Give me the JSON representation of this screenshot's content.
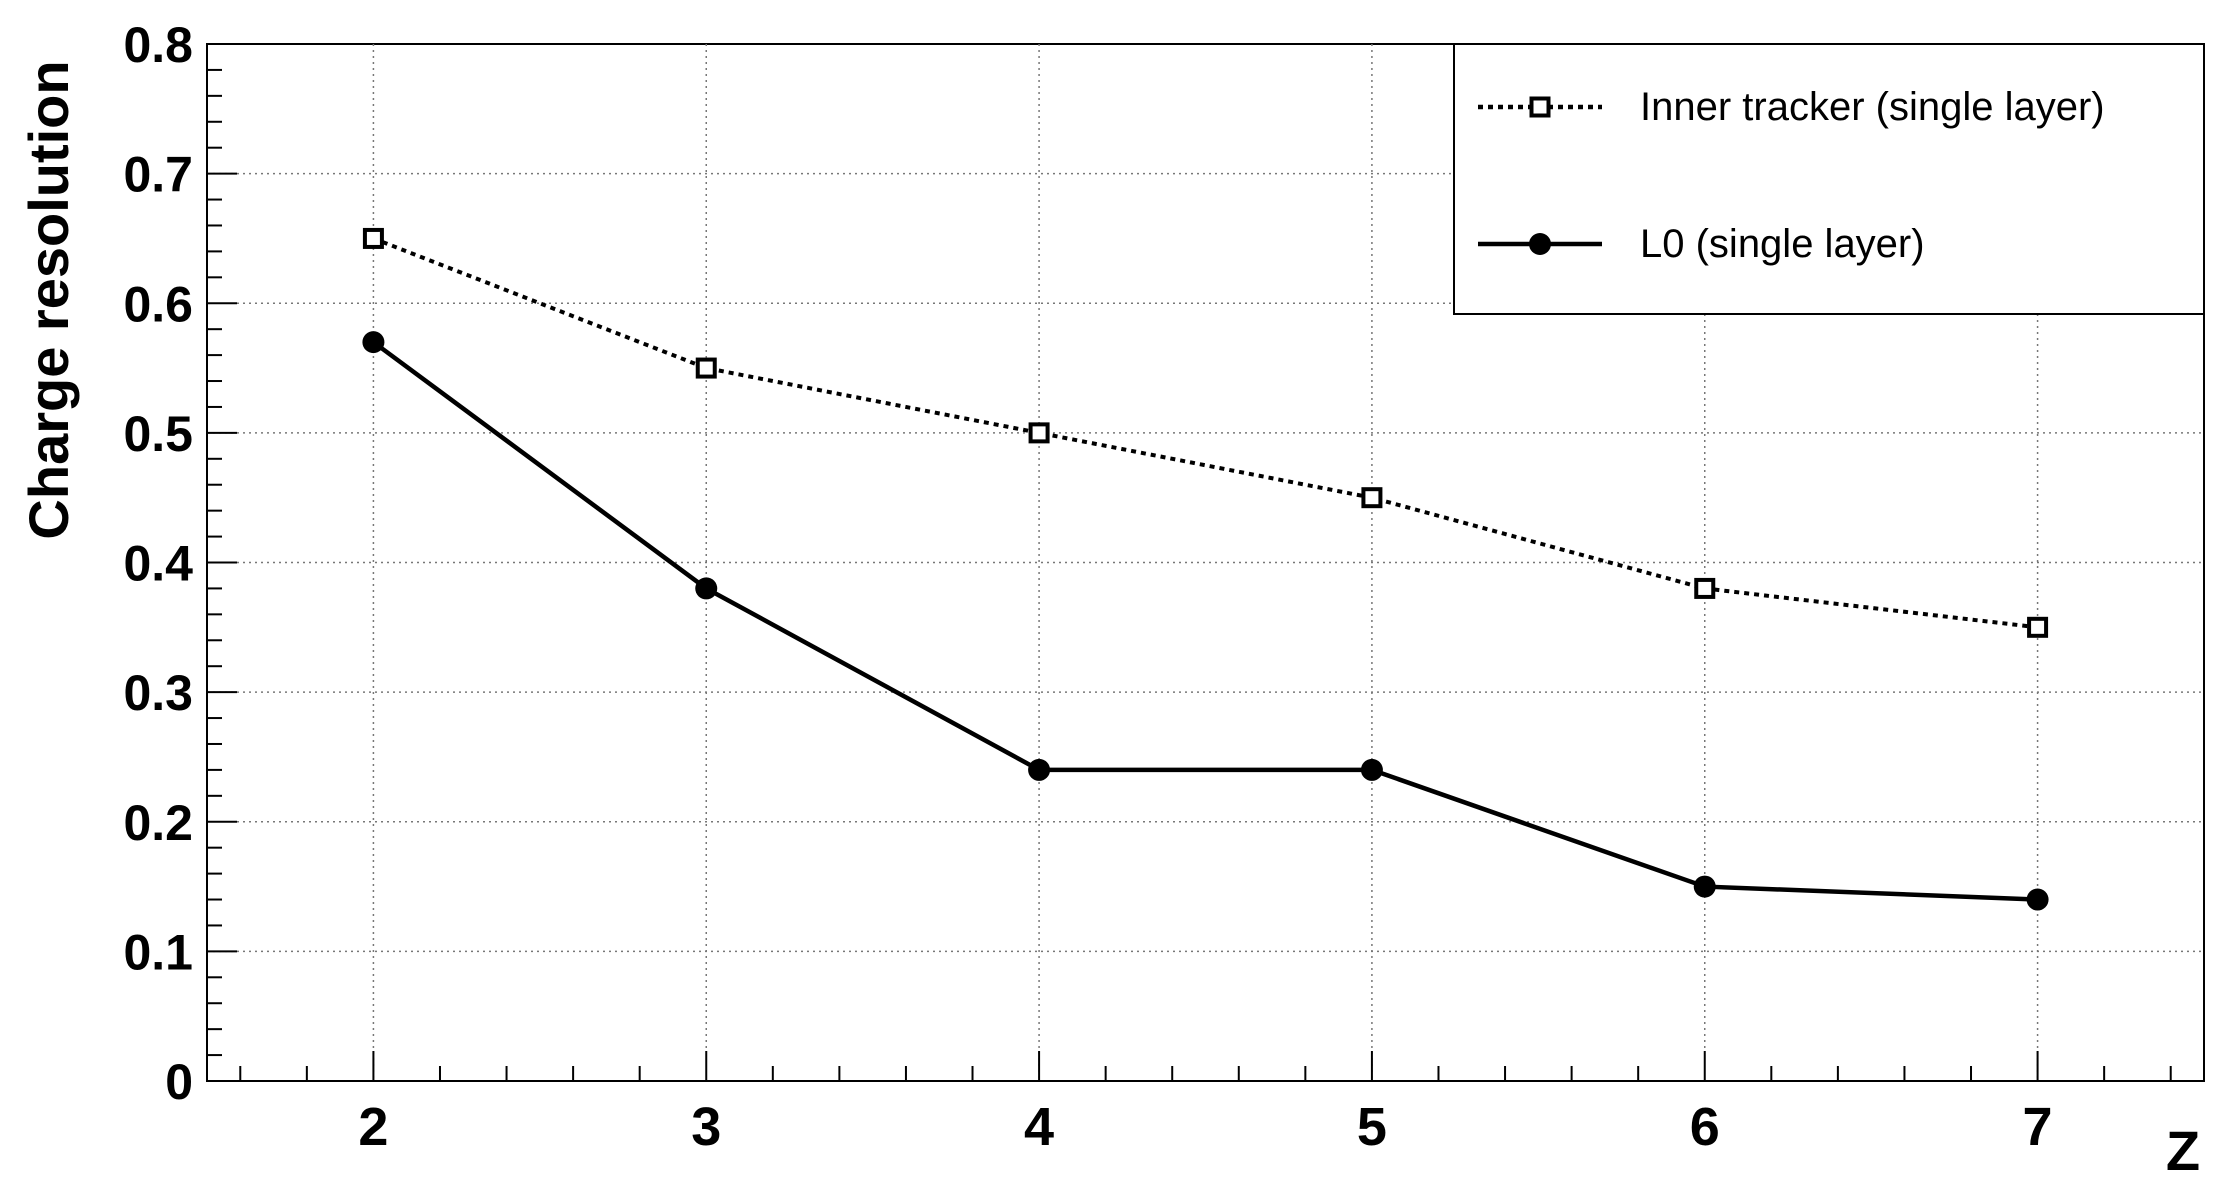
{
  "chart_data": {
    "type": "line",
    "xlabel": "Z",
    "ylabel": "Charge resolution",
    "xlim": [
      1.5,
      7.5
    ],
    "ylim": [
      0,
      0.8
    ],
    "x_ticks": [
      "2",
      "3",
      "4",
      "5",
      "6",
      "7"
    ],
    "y_ticks": [
      "0",
      "0.1",
      "0.2",
      "0.3",
      "0.4",
      "0.5",
      "0.6",
      "0.7",
      "0.8"
    ],
    "grid": true,
    "legend_position": "top-right",
    "series": [
      {
        "name": "Inner tracker (single layer)",
        "style": "dotted",
        "marker": "open-square",
        "x": [
          2,
          3,
          4,
          5,
          6,
          7
        ],
        "y": [
          0.65,
          0.55,
          0.5,
          0.45,
          0.38,
          0.35
        ]
      },
      {
        "name": "L0 (single layer)",
        "style": "solid",
        "marker": "filled-circle",
        "x": [
          2,
          3,
          4,
          5,
          6,
          7
        ],
        "y": [
          0.57,
          0.38,
          0.24,
          0.24,
          0.15,
          0.14
        ]
      }
    ]
  }
}
